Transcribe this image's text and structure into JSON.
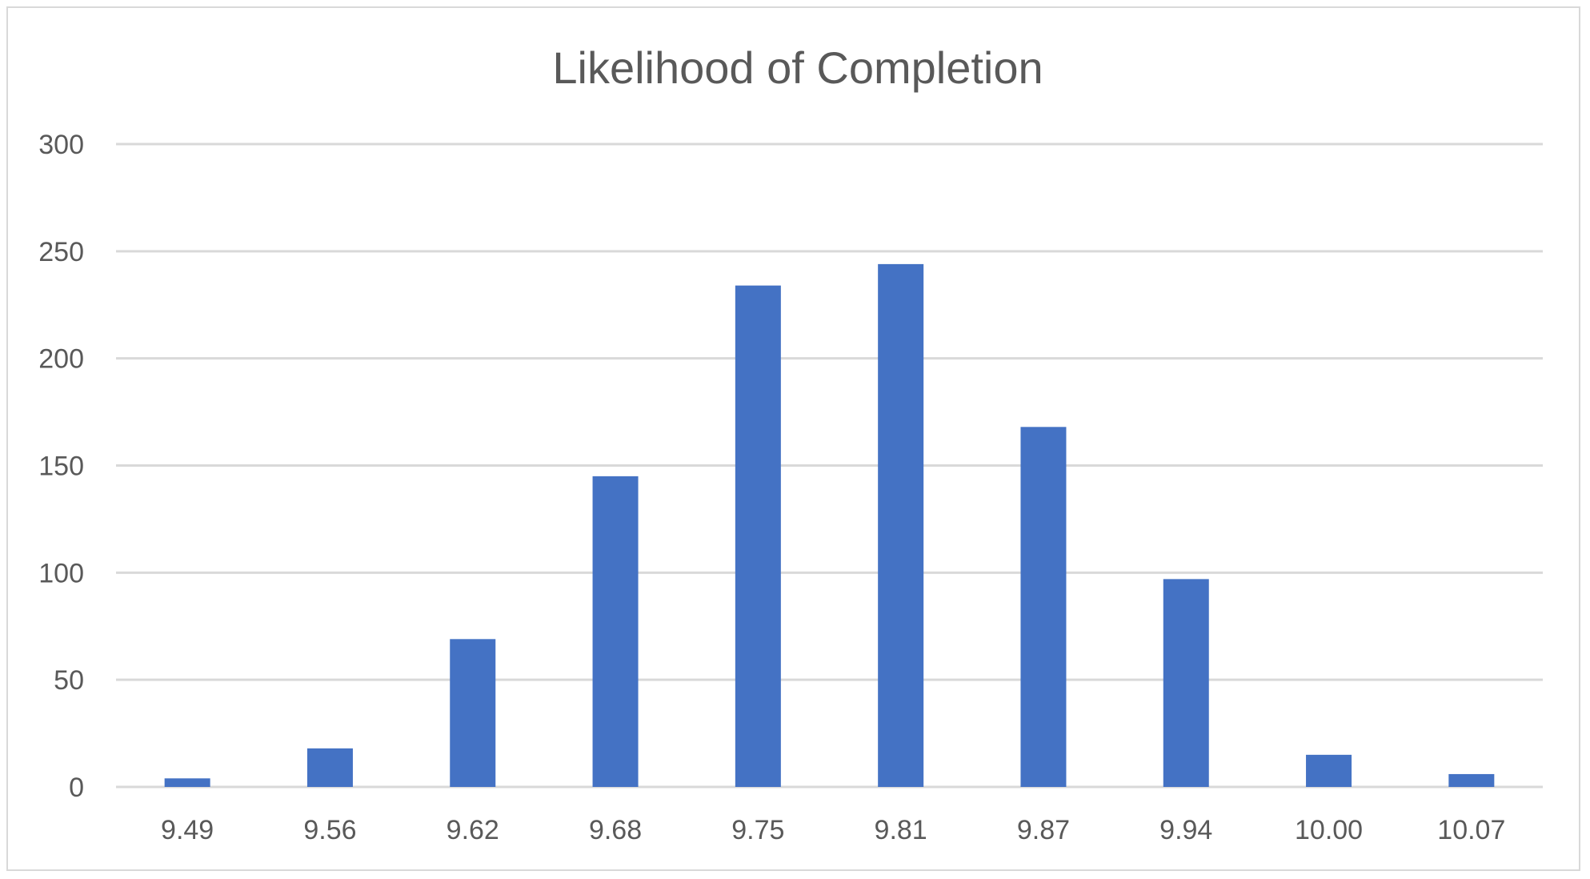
{
  "chart_data": {
    "type": "bar",
    "title": "Likelihood of Completion",
    "xlabel": "",
    "ylabel": "",
    "categories": [
      "9.49",
      "9.56",
      "9.62",
      "9.68",
      "9.75",
      "9.81",
      "9.87",
      "9.94",
      "10.00",
      "10.07"
    ],
    "values": [
      4,
      18,
      69,
      145,
      234,
      244,
      168,
      97,
      15,
      6
    ],
    "ylim": [
      0,
      300
    ],
    "yticks": [
      "0",
      "50",
      "100",
      "150",
      "200",
      "250",
      "300"
    ],
    "grid": true,
    "legend": "none",
    "bar_color": "#4472C4"
  }
}
